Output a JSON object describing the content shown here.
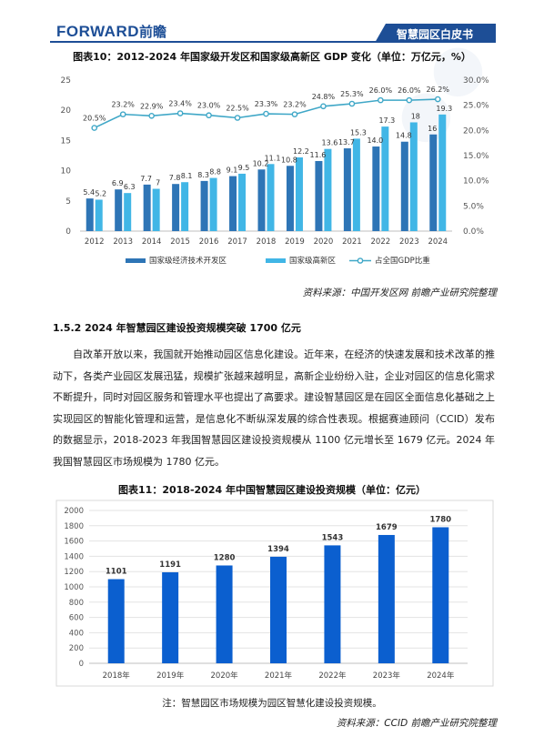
{
  "header": {
    "logo_en": "FORWARD",
    "logo_cn": "前瞻",
    "badge": "智慧园区白皮书"
  },
  "figure10": {
    "caption": "图表10：2012-2024 年国家级开发区和国家级高新区 GDP 变化（单位：万亿元，%）",
    "source": "资料来源：中国开发区网 前瞻产业研究院整理"
  },
  "section": {
    "title": "1.5.2 2024 年智慧园区建设投资规模突破 1700 亿元",
    "paragraph": "自改革开放以来，我国就开始推动园区信息化建设。近年来，在经济的快速发展和技术改革的推动下，各类产业园区发展迅猛，规模扩张越来越明显，高新企业纷纷入驻，企业对园区的信息化需求不断提升，同时对园区服务和管理水平也提出了高要求。建设智慧园区是在园区全面信息化基础之上实现园区的智能化管理和运营，是信息化不断纵深发展的综合性表现。根据赛迪顾问（CCID）发布的数据显示，2018-2023 年我国智慧园区建设投资规模从 1100 亿元增长至 1679 亿元。2024 年我国智慧园区市场规模为 1780 亿元。"
  },
  "figure11": {
    "caption": "图表11：2018-2024 年中国智慧园区建设投资规模（单位：亿元）",
    "note": "注：智慧园区市场规模为园区智慧化建设投资规模。",
    "source": "资料来源：CCID 前瞻产业研究院整理"
  },
  "colors": {
    "brand": "#1d4e96",
    "series_dev_zone": "#2e75b6",
    "series_hitech": "#41b6e6",
    "series_ratio": "#3fa7c7",
    "bar_investment": "#0b5fcf"
  },
  "chart_data": [
    {
      "type": "bar",
      "title": "",
      "categories": [
        "2012",
        "2013",
        "2014",
        "2015",
        "2016",
        "2017",
        "2018",
        "2019",
        "2020",
        "2021",
        "2022",
        "2023",
        "2024"
      ],
      "series": [
        {
          "name": "国家级经济技术开发区",
          "values": [
            5.4,
            6.9,
            7.7,
            7.8,
            8.3,
            9.1,
            10.2,
            10.8,
            11.6,
            13.7,
            14.0,
            14.8,
            16
          ]
        },
        {
          "name": "国家级高新区",
          "values": [
            5.2,
            6.3,
            7,
            8.1,
            8.8,
            9.5,
            11.1,
            12.2,
            13.6,
            15.3,
            17.3,
            18,
            19.3
          ]
        },
        {
          "name": "占全国GDP比重",
          "type": "line",
          "axis": "right",
          "values": [
            20.5,
            23.2,
            22.9,
            23.4,
            23.0,
            22.5,
            23.3,
            23.2,
            24.8,
            25.3,
            26.0,
            26.0,
            26.2
          ]
        }
      ],
      "data_labels_left": [
        "5.4",
        "6.9",
        "7.7",
        "7.8",
        "8.3",
        "9.1",
        "10.2",
        "10.8",
        "11.6",
        "13.7",
        "14.0",
        "14.8",
        "16"
      ],
      "data_labels_right": [
        "5.2",
        "6.3",
        "7",
        "8.1",
        "8.8",
        "9.5",
        "11.1",
        "12.2",
        "13.6",
        "15.3",
        "17.3",
        "18",
        "19.3"
      ],
      "data_labels_line": [
        "20.5%",
        "23.2%",
        "22.9%",
        "23.4%",
        "23.0%",
        "22.5%",
        "23.3%",
        "23.2%",
        "24.8%",
        "25.3%",
        "26.0%",
        "26.0%",
        "26.2%"
      ],
      "ylim": [
        0,
        25
      ],
      "yticks": [
        "0",
        "5",
        "10",
        "15",
        "20",
        "25"
      ],
      "y2lim": [
        0,
        30
      ],
      "y2ticks": [
        "0.0%",
        "5.0%",
        "10.0%",
        "15.0%",
        "20.0%",
        "25.0%",
        "30.0%"
      ],
      "legend_position": "bottom",
      "grid": false
    },
    {
      "type": "bar",
      "title": "",
      "categories": [
        "2018年",
        "2019年",
        "2020年",
        "2021年",
        "2022年",
        "2023年",
        "2024年"
      ],
      "values": [
        1101,
        1191,
        1280,
        1394,
        1543,
        1679,
        1780
      ],
      "data_labels": [
        "1101",
        "1191",
        "1280",
        "1394",
        "1543",
        "1679",
        "1780"
      ],
      "ylim": [
        0,
        2000
      ],
      "yticks": [
        "0",
        "200",
        "400",
        "600",
        "800",
        "1000",
        "1200",
        "1400",
        "1600",
        "1800",
        "2000"
      ],
      "grid": true,
      "legend_position": "none"
    }
  ]
}
